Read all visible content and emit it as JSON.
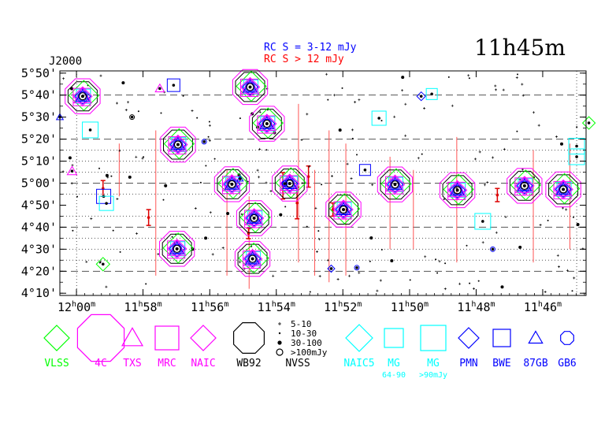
{
  "chart_data": {
    "type": "scatter",
    "title": "11h45m",
    "epoch_label": "J2000",
    "rc_notes": [
      {
        "text": "RC S = 3-12 mJy",
        "color": "#0000ff"
      },
      {
        "text": "RC S > 12 mJy",
        "color": "#ff0000"
      }
    ],
    "x_ticks": [
      {
        "ra": 12.0,
        "label": "12h00m"
      },
      {
        "ra": 11.9667,
        "label": "11h58m"
      },
      {
        "ra": 11.9333,
        "label": "11h56m"
      },
      {
        "ra": 11.9,
        "label": "11h54m"
      },
      {
        "ra": 11.8667,
        "label": "11h52m"
      },
      {
        "ra": 11.8333,
        "label": "11h50m"
      },
      {
        "ra": 11.8,
        "label": "11h48m"
      },
      {
        "ra": 11.7667,
        "label": "11h46m"
      }
    ],
    "y_ticks": [
      {
        "dec": 4.1667,
        "label": "4°10'"
      },
      {
        "dec": 4.3333,
        "label": "4°20'"
      },
      {
        "dec": 4.5,
        "label": "4°30'"
      },
      {
        "dec": 4.6667,
        "label": "4°40'"
      },
      {
        "dec": 4.8333,
        "label": "4°50'"
      },
      {
        "dec": 5.0,
        "label": "5°00'"
      },
      {
        "dec": 5.1667,
        "label": "5°10'"
      },
      {
        "dec": 5.3333,
        "label": "5°20'"
      },
      {
        "dec": 5.5,
        "label": "5°30'"
      },
      {
        "dec": 5.6667,
        "label": "5°40'"
      },
      {
        "dec": 5.8333,
        "label": "5°50'"
      }
    ],
    "xlim": [
      12.0083,
      11.745
    ],
    "ylim": [
      4.15,
      5.85
    ],
    "dashed_dec": [
      4.333,
      4.667,
      5.0,
      5.333,
      5.667
    ],
    "dotted_dec": [
      4.417,
      4.5,
      4.583,
      4.75,
      4.917,
      5.083,
      5.167,
      5.25
    ],
    "dotted_ra": [
      11.9999,
      11.7497
    ],
    "strip_lines": [
      {
        "ra": 11.9786,
        "dec": [
          4.9,
          5.3
        ]
      },
      {
        "ra": 11.9603,
        "dec": [
          4.3,
          5.4
        ]
      },
      {
        "ra": 11.9247,
        "dec": [
          4.3,
          5.1
        ]
      },
      {
        "ra": 11.9136,
        "dec": [
          4.2,
          4.9
        ]
      },
      {
        "ra": 11.8889,
        "dec": [
          4.4,
          5.6
        ]
      },
      {
        "ra": 11.8808,
        "dec": [
          4.3,
          5.1
        ]
      },
      {
        "ra": 11.8736,
        "dec": [
          4.25,
          5.4
        ]
      },
      {
        "ra": 11.8652,
        "dec": [
          4.3,
          5.3
        ]
      },
      {
        "ra": 11.8431,
        "dec": [
          4.5,
          5.2
        ]
      },
      {
        "ra": 11.8314,
        "dec": [
          4.5,
          5.1
        ]
      },
      {
        "ra": 11.8097,
        "dec": [
          4.4,
          5.35
        ]
      },
      {
        "ra": 11.7714,
        "dec": [
          4.4,
          5.25
        ]
      },
      {
        "ra": 11.7531,
        "dec": [
          4.5,
          5.3
        ]
      }
    ],
    "error_bars": [
      {
        "ra": 11.9867,
        "dec": 4.96,
        "err": 0.06
      },
      {
        "ra": 11.9639,
        "dec": 4.74,
        "err": 0.06
      },
      {
        "ra": 11.9139,
        "dec": 4.62,
        "err": 0.04
      },
      {
        "ra": 11.8967,
        "dec": 4.98,
        "err": 0.1
      },
      {
        "ra": 11.8896,
        "dec": 4.85,
        "err": 0.12
      },
      {
        "ra": 11.8839,
        "dec": 5.05,
        "err": 0.08
      },
      {
        "ra": 11.8717,
        "dec": 4.8,
        "err": 0.05
      },
      {
        "ra": 11.7894,
        "dec": 4.91,
        "err": 0.05
      }
    ],
    "sources": [
      {
        "ra": 11.9969,
        "dec": 5.658
      },
      {
        "ra": 11.9492,
        "dec": 5.292
      },
      {
        "ra": 11.9497,
        "dec": 4.503
      },
      {
        "ra": 11.9222,
        "dec": 4.992
      },
      {
        "ra": 11.9131,
        "dec": 5.728
      },
      {
        "ra": 11.9047,
        "dec": 5.45
      },
      {
        "ra": 11.9111,
        "dec": 4.735
      },
      {
        "ra": 11.8933,
        "dec": 4.997
      },
      {
        "ra": 11.8664,
        "dec": 4.8
      },
      {
        "ra": 11.8406,
        "dec": 4.99
      },
      {
        "ra": 11.8094,
        "dec": 4.947
      },
      {
        "ra": 11.7758,
        "dec": 4.98
      },
      {
        "ra": 11.7564,
        "dec": 4.953
      },
      {
        "ra": 11.9119,
        "dec": 4.427
      }
    ],
    "small_markers": [
      {
        "type": "triangle",
        "ra": 12.0083,
        "dec": 5.5,
        "size": 10,
        "color": "#0000ff"
      },
      {
        "type": "triangle",
        "ra": 12.0022,
        "dec": 5.0917,
        "size": 14,
        "color": "#ff00ff"
      },
      {
        "type": "triangle",
        "ra": 11.9583,
        "dec": 5.7167,
        "size": 13,
        "color": "#ff00ff"
      },
      {
        "type": "square",
        "ra": 11.9514,
        "dec": 5.7417,
        "size": 16,
        "color": "#0000ff"
      },
      {
        "type": "square",
        "ra": 11.9931,
        "dec": 5.403,
        "size": 20,
        "color": "#00ffff"
      },
      {
        "type": "square",
        "ra": 11.9864,
        "dec": 4.9,
        "size": 18,
        "color": "#0000ff"
      },
      {
        "type": "square",
        "ra": 11.985,
        "dec": 4.847,
        "size": 18,
        "color": "#00ffff"
      },
      {
        "type": "diamond",
        "ra": 11.9867,
        "dec": 4.387,
        "size": 17,
        "color": "#00ff00"
      },
      {
        "type": "circle",
        "ra": 11.9722,
        "dec": 5.5,
        "size": 6,
        "color": "#000000"
      },
      {
        "type": "circle",
        "ra": 11.9361,
        "dec": 5.314,
        "size": 6,
        "color": "#0000ff"
      },
      {
        "type": "triangle",
        "ra": 11.9181,
        "dec": 5.033,
        "size": 9,
        "color": "#0000ff"
      },
      {
        "type": "circle",
        "ra": 11.8958,
        "dec": 4.997,
        "size": 7,
        "color": "#0000ff"
      },
      {
        "type": "diamond",
        "ra": 11.8725,
        "dec": 4.353,
        "size": 9,
        "color": "#0000ff"
      },
      {
        "type": "circle",
        "ra": 11.8597,
        "dec": 4.36,
        "size": 6,
        "color": "#0000ff"
      },
      {
        "type": "square",
        "ra": 11.8556,
        "dec": 5.1,
        "size": 14,
        "color": "#0000ff"
      },
      {
        "type": "square",
        "ra": 11.8486,
        "dec": 5.492,
        "size": 18,
        "color": "#00ffff"
      },
      {
        "type": "diamond",
        "ra": 11.8275,
        "dec": 5.658,
        "size": 11,
        "color": "#0000ff"
      },
      {
        "type": "square",
        "ra": 11.8222,
        "dec": 5.675,
        "size": 14,
        "color": "#00ffff"
      },
      {
        "type": "square",
        "ra": 11.7967,
        "dec": 4.711,
        "size": 20,
        "color": "#00ffff"
      },
      {
        "type": "circle",
        "ra": 11.7917,
        "dec": 4.5,
        "size": 6,
        "color": "#0000ff"
      },
      {
        "type": "square",
        "ra": 11.7497,
        "dec": 5.28,
        "size": 20,
        "color": "#00ffff"
      },
      {
        "type": "square",
        "ra": 11.7497,
        "dec": 5.2,
        "size": 20,
        "color": "#00ffff"
      },
      {
        "type": "diamond",
        "ra": 11.7436,
        "dec": 5.456,
        "size": 16,
        "color": "#00ff00"
      }
    ],
    "legend": [
      {
        "name": "VLSS",
        "shape": "diamond",
        "color": "#00ff00",
        "label_color": "#00ff00"
      },
      {
        "name": "4C",
        "shape": "octagon",
        "color": "#ff00ff",
        "label_color": "#ff00ff"
      },
      {
        "name": "TXS",
        "shape": "triangle",
        "color": "#ff00ff",
        "label_color": "#ff00ff"
      },
      {
        "name": "MRC",
        "shape": "square",
        "color": "#ff00ff",
        "label_color": "#ff00ff"
      },
      {
        "name": "NAIC",
        "shape": "diamond",
        "color": "#ff00ff",
        "label_color": "#ff00ff"
      },
      {
        "name": "WB92",
        "shape": "octagon",
        "color": "#000000",
        "label_color": "#000000"
      },
      {
        "name": "NVSS",
        "shape": "dots",
        "color": "#000000",
        "label_color": "#000000"
      },
      {
        "name": "NAIC5",
        "shape": "diamond",
        "color": "#00ffff",
        "label_color": "#00ffff"
      },
      {
        "name": "MG",
        "shape": "square",
        "color": "#00ffff",
        "label_color": "#00ffff",
        "sub": "64-90"
      },
      {
        "name": "MG",
        "shape": "square",
        "color": "#00ffff",
        "label_color": "#00ffff",
        "sub": ">90mJy"
      },
      {
        "name": "PMN",
        "shape": "diamond",
        "color": "#0000ff",
        "label_color": "#0000ff"
      },
      {
        "name": "BWE",
        "shape": "square",
        "color": "#0000ff",
        "label_color": "#0000ff"
      },
      {
        "name": "87GB",
        "shape": "triangle",
        "color": "#0000ff",
        "label_color": "#0000ff"
      },
      {
        "name": "GB6",
        "shape": "octagon",
        "color": "#0000ff",
        "label_color": "#0000ff"
      }
    ],
    "nvss_legend": [
      {
        "label": "5-10",
        "marker": "plus"
      },
      {
        "label": "10-30",
        "marker": "dot-small"
      },
      {
        "label": "30-100",
        "marker": "dot-large"
      },
      {
        "label": ">100mJy",
        "marker": "ring"
      }
    ]
  }
}
